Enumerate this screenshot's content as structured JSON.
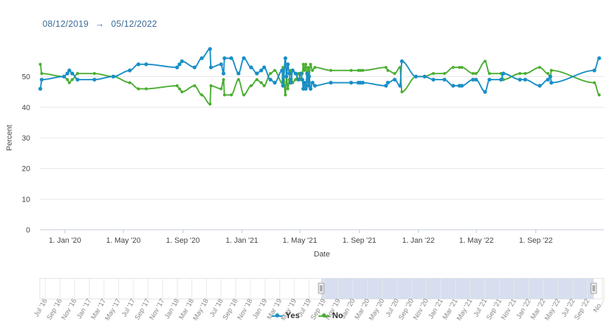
{
  "range": {
    "from": "08/12/2019",
    "arrow": "→",
    "to": "05/12/2022"
  },
  "colors": {
    "yes": "#1a8fc6",
    "no": "#4cae33",
    "grid": "#e6e6e6",
    "axis": "#ccd6eb",
    "navigator_mask": "#c9d3ea"
  },
  "chart_data": {
    "type": "line",
    "ylabel": "Percent",
    "xlabel": "Date",
    "ylim": [
      0,
      60
    ],
    "y_ticks": [
      0,
      10,
      20,
      30,
      40,
      50
    ],
    "x_ticks": [
      {
        "date": "2020-01-01",
        "label": "1. Jan '20"
      },
      {
        "date": "2020-05-01",
        "label": "1. May '20"
      },
      {
        "date": "2020-09-01",
        "label": "1. Sep '20"
      },
      {
        "date": "2021-01-01",
        "label": "1. Jan '21"
      },
      {
        "date": "2021-05-01",
        "label": "1. May '21"
      },
      {
        "date": "2021-09-01",
        "label": "1. Sep '21"
      },
      {
        "date": "2022-01-01",
        "label": "1. Jan '22"
      },
      {
        "date": "2022-05-01",
        "label": "1. May '22"
      },
      {
        "date": "2022-09-01",
        "label": "1. Sep '22"
      }
    ],
    "x_range": [
      "2019-11-10",
      "2023-01-20"
    ],
    "grid": true,
    "legend": "bottom-center",
    "series": [
      {
        "name": "Yes",
        "key": "yes",
        "points": [
          [
            "2019-11-11",
            46
          ],
          [
            "2019-11-14",
            49
          ],
          [
            "2019-12-30",
            50
          ],
          [
            "2020-01-06",
            51
          ],
          [
            "2020-01-10",
            52
          ],
          [
            "2020-01-16",
            51
          ],
          [
            "2020-01-27",
            49
          ],
          [
            "2020-03-02",
            49
          ],
          [
            "2020-04-10",
            50
          ],
          [
            "2020-05-14",
            52
          ],
          [
            "2020-06-01",
            54
          ],
          [
            "2020-06-17",
            54
          ],
          [
            "2020-08-20",
            53
          ],
          [
            "2020-08-25",
            54
          ],
          [
            "2020-08-30",
            55
          ],
          [
            "2020-09-25",
            53
          ],
          [
            "2020-10-10",
            56
          ],
          [
            "2020-10-27",
            59
          ],
          [
            "2020-10-29",
            53
          ],
          [
            "2020-11-19",
            54
          ],
          [
            "2020-11-24",
            51
          ],
          [
            "2020-11-26",
            56
          ],
          [
            "2020-12-10",
            56
          ],
          [
            "2020-12-25",
            51
          ],
          [
            "2021-01-05",
            56
          ],
          [
            "2021-01-20",
            53
          ],
          [
            "2021-02-01",
            51
          ],
          [
            "2021-02-10",
            52
          ],
          [
            "2021-02-16",
            53
          ],
          [
            "2021-03-01",
            49
          ],
          [
            "2021-03-10",
            48
          ],
          [
            "2021-03-25",
            52
          ],
          [
            "2021-03-27",
            47
          ],
          [
            "2021-04-01",
            56
          ],
          [
            "2021-04-03",
            50
          ],
          [
            "2021-04-06",
            54
          ],
          [
            "2021-04-09",
            51
          ],
          [
            "2021-04-12",
            48
          ],
          [
            "2021-04-16",
            52
          ],
          [
            "2021-04-22",
            51
          ],
          [
            "2021-04-28",
            49
          ],
          [
            "2021-05-03",
            51
          ],
          [
            "2021-05-06",
            49
          ],
          [
            "2021-05-08",
            46
          ],
          [
            "2021-05-10",
            48
          ],
          [
            "2021-05-13",
            46
          ],
          [
            "2021-05-16",
            51
          ],
          [
            "2021-05-18",
            47
          ],
          [
            "2021-05-20",
            50
          ],
          [
            "2021-05-23",
            46
          ],
          [
            "2021-05-27",
            48
          ],
          [
            "2021-06-01",
            47
          ],
          [
            "2021-07-04",
            48
          ],
          [
            "2021-08-15",
            48
          ],
          [
            "2021-08-30",
            48
          ],
          [
            "2021-09-03",
            48
          ],
          [
            "2021-09-08",
            48
          ],
          [
            "2021-10-26",
            47
          ],
          [
            "2021-10-30",
            48
          ],
          [
            "2021-11-13",
            49
          ],
          [
            "2021-11-24",
            47
          ],
          [
            "2021-11-28",
            55
          ],
          [
            "2021-12-27",
            50
          ],
          [
            "2022-01-14",
            50
          ],
          [
            "2022-02-01",
            49
          ],
          [
            "2022-02-24",
            49
          ],
          [
            "2022-03-14",
            47
          ],
          [
            "2022-03-27",
            47
          ],
          [
            "2022-04-01",
            47
          ],
          [
            "2022-04-24",
            49
          ],
          [
            "2022-04-30",
            49
          ],
          [
            "2022-05-19",
            45
          ],
          [
            "2022-05-28",
            49
          ],
          [
            "2022-06-21",
            49
          ],
          [
            "2022-06-26",
            51
          ],
          [
            "2022-07-30",
            49
          ],
          [
            "2022-08-10",
            49
          ],
          [
            "2022-09-09",
            47
          ],
          [
            "2022-09-26",
            49
          ],
          [
            "2022-10-01",
            50
          ],
          [
            "2022-10-03",
            48
          ],
          [
            "2022-12-31",
            52
          ],
          [
            "2023-01-10",
            56
          ]
        ]
      },
      {
        "name": "No",
        "key": "no",
        "points": [
          [
            "2019-11-11",
            54
          ],
          [
            "2019-11-14",
            51
          ],
          [
            "2019-12-30",
            50
          ],
          [
            "2020-01-06",
            49
          ],
          [
            "2020-01-10",
            48
          ],
          [
            "2020-01-16",
            49
          ],
          [
            "2020-01-27",
            51
          ],
          [
            "2020-03-02",
            51
          ],
          [
            "2020-04-10",
            50
          ],
          [
            "2020-05-14",
            48
          ],
          [
            "2020-06-01",
            46
          ],
          [
            "2020-06-17",
            46
          ],
          [
            "2020-08-20",
            47
          ],
          [
            "2020-08-25",
            46
          ],
          [
            "2020-08-30",
            45
          ],
          [
            "2020-09-25",
            47
          ],
          [
            "2020-10-10",
            44
          ],
          [
            "2020-10-27",
            41
          ],
          [
            "2020-10-29",
            47
          ],
          [
            "2020-11-19",
            46
          ],
          [
            "2020-11-24",
            49
          ],
          [
            "2020-11-26",
            44
          ],
          [
            "2020-12-10",
            44
          ],
          [
            "2020-12-25",
            49
          ],
          [
            "2021-01-05",
            44
          ],
          [
            "2021-01-20",
            47
          ],
          [
            "2021-02-01",
            49
          ],
          [
            "2021-02-10",
            48
          ],
          [
            "2021-02-16",
            47
          ],
          [
            "2021-03-01",
            51
          ],
          [
            "2021-03-10",
            52
          ],
          [
            "2021-03-25",
            48
          ],
          [
            "2021-03-27",
            53
          ],
          [
            "2021-04-01",
            44
          ],
          [
            "2021-04-03",
            50
          ],
          [
            "2021-04-06",
            46
          ],
          [
            "2021-04-09",
            49
          ],
          [
            "2021-04-12",
            52
          ],
          [
            "2021-04-16",
            48
          ],
          [
            "2021-04-22",
            49
          ],
          [
            "2021-04-28",
            51
          ],
          [
            "2021-05-03",
            49
          ],
          [
            "2021-05-06",
            51
          ],
          [
            "2021-05-08",
            54
          ],
          [
            "2021-05-10",
            52
          ],
          [
            "2021-05-13",
            54
          ],
          [
            "2021-05-16",
            49
          ],
          [
            "2021-05-18",
            53
          ],
          [
            "2021-05-20",
            50
          ],
          [
            "2021-05-23",
            54
          ],
          [
            "2021-05-27",
            52
          ],
          [
            "2021-06-01",
            53
          ],
          [
            "2021-07-04",
            52
          ],
          [
            "2021-08-15",
            52
          ],
          [
            "2021-08-30",
            52
          ],
          [
            "2021-09-03",
            52
          ],
          [
            "2021-09-08",
            52
          ],
          [
            "2021-10-26",
            53
          ],
          [
            "2021-10-30",
            52
          ],
          [
            "2021-11-13",
            51
          ],
          [
            "2021-11-24",
            53
          ],
          [
            "2021-11-28",
            45
          ],
          [
            "2021-12-27",
            50
          ],
          [
            "2022-01-14",
            50
          ],
          [
            "2022-02-01",
            51
          ],
          [
            "2022-02-24",
            51
          ],
          [
            "2022-03-14",
            53
          ],
          [
            "2022-03-27",
            53
          ],
          [
            "2022-04-01",
            53
          ],
          [
            "2022-04-24",
            51
          ],
          [
            "2022-04-30",
            51
          ],
          [
            "2022-05-19",
            55
          ],
          [
            "2022-05-28",
            51
          ],
          [
            "2022-06-21",
            51
          ],
          [
            "2022-06-26",
            49
          ],
          [
            "2022-07-30",
            51
          ],
          [
            "2022-08-10",
            51
          ],
          [
            "2022-09-09",
            53
          ],
          [
            "2022-09-26",
            51
          ],
          [
            "2022-10-01",
            50
          ],
          [
            "2022-10-03",
            52
          ],
          [
            "2022-12-31",
            48
          ],
          [
            "2023-01-10",
            44
          ]
        ]
      }
    ]
  },
  "navigator": {
    "labels": [
      "Jul '16",
      "Sep '16",
      "Nov '16",
      "Jan '17",
      "Mar '17",
      "May '17",
      "Jul '17",
      "Sep '17",
      "Nov '17",
      "Jan '18",
      "Mar '18",
      "May '18",
      "Jul '18",
      "Sep '18",
      "Nov '18",
      "Jan '19",
      "Mar '19",
      "May '19",
      "Jul '19",
      "Sep '19",
      "Nov '19",
      "Jan '20",
      "Mar '20",
      "May '20",
      "Jul '20",
      "Sep '20",
      "Nov '20",
      "Jan '21",
      "Mar '21",
      "May '21",
      "Jul '21",
      "Sep '21",
      "Nov '21",
      "Jan '22",
      "Mar '22",
      "May '22",
      "Jul '22",
      "Sep '22",
      "No..."
    ],
    "selected_from_index": 19.2,
    "selected_to_index": 37.8
  },
  "legend": {
    "yes": "Yes",
    "no": "No"
  }
}
